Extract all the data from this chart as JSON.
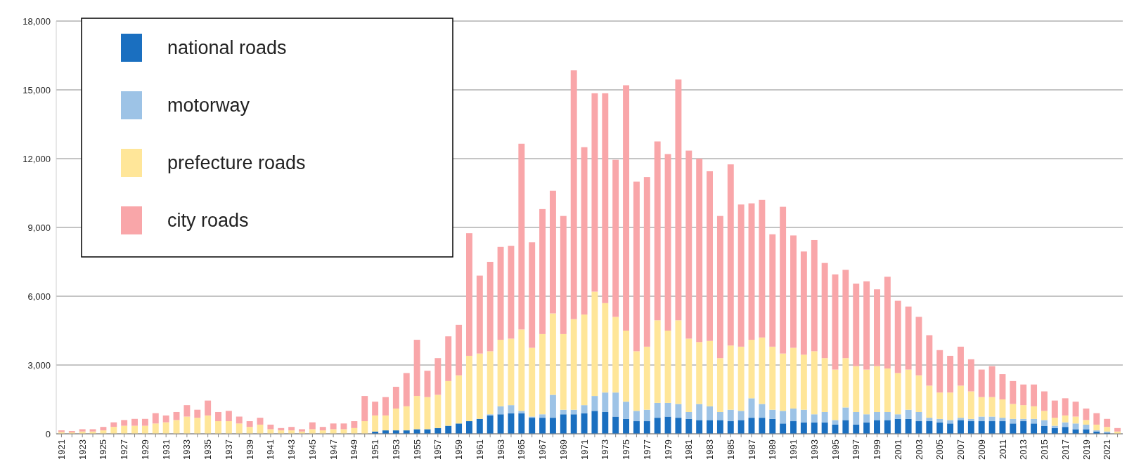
{
  "chart_data": {
    "type": "bar",
    "stacked": true,
    "categories": [
      "1921",
      null,
      "1923",
      null,
      "1925",
      null,
      "1927",
      null,
      "1929",
      null,
      "1931",
      null,
      "1933",
      null,
      "1935",
      null,
      "1937",
      null,
      "1939",
      null,
      "1941",
      null,
      "1943",
      null,
      "1945",
      null,
      "1947",
      null,
      "1949",
      null,
      "1951",
      null,
      "1953",
      null,
      "1955",
      null,
      "1957",
      null,
      "1959",
      null,
      "1961",
      null,
      "1963",
      null,
      "1965",
      null,
      "1967",
      null,
      "1969",
      null,
      "1971",
      null,
      "1973",
      null,
      "1975",
      null,
      "1977",
      null,
      "1979",
      null,
      "1981",
      null,
      "1983",
      null,
      "1985",
      null,
      "1987",
      null,
      "1989",
      null,
      "1991",
      null,
      "1993",
      null,
      "1995",
      null,
      "1997",
      null,
      "1999",
      null,
      "2001",
      null,
      "2003",
      null,
      "2005",
      null,
      "2007",
      null,
      "2009",
      null,
      "2011",
      null,
      "2013",
      null,
      "2015",
      null,
      "2017",
      null,
      "2019",
      null,
      "2021",
      null
    ],
    "series": [
      {
        "name": "national roads",
        "color": "#1a6fc0",
        "values": [
          0,
          0,
          0,
          0,
          0,
          0,
          0,
          0,
          0,
          0,
          0,
          0,
          0,
          0,
          0,
          0,
          0,
          0,
          0,
          0,
          0,
          0,
          0,
          0,
          0,
          0,
          0,
          0,
          0,
          0,
          100,
          150,
          150,
          150,
          200,
          200,
          250,
          350,
          450,
          550,
          650,
          800,
          850,
          900,
          900,
          700,
          700,
          700,
          850,
          850,
          900,
          1000,
          950,
          750,
          650,
          550,
          550,
          700,
          750,
          700,
          650,
          600,
          600,
          600,
          550,
          600,
          700,
          700,
          650,
          450,
          550,
          500,
          500,
          500,
          400,
          600,
          400,
          500,
          600,
          600,
          650,
          650,
          550,
          550,
          500,
          450,
          600,
          550,
          550,
          550,
          550,
          450,
          550,
          450,
          350,
          250,
          300,
          200,
          200,
          100,
          50,
          0
        ]
      },
      {
        "name": "motorway",
        "color": "#9dc3e6",
        "values": [
          0,
          0,
          0,
          0,
          0,
          0,
          0,
          0,
          0,
          0,
          0,
          0,
          0,
          0,
          0,
          0,
          0,
          0,
          0,
          0,
          0,
          0,
          0,
          0,
          0,
          0,
          0,
          0,
          0,
          0,
          0,
          0,
          0,
          0,
          0,
          0,
          0,
          0,
          0,
          0,
          0,
          50,
          350,
          350,
          100,
          50,
          150,
          1000,
          200,
          200,
          350,
          650,
          850,
          1050,
          750,
          450,
          500,
          650,
          600,
          600,
          300,
          700,
          600,
          350,
          500,
          400,
          850,
          600,
          400,
          550,
          550,
          550,
          350,
          450,
          200,
          550,
          550,
          350,
          350,
          350,
          200,
          400,
          400,
          150,
          150,
          150,
          100,
          100,
          200,
          200,
          150,
          200,
          100,
          200,
          250,
          100,
          200,
          250,
          200,
          50,
          50,
          0
        ]
      },
      {
        "name": "prefecture roads",
        "color": "#ffe699",
        "values": [
          80,
          60,
          100,
          100,
          150,
          300,
          350,
          350,
          350,
          450,
          500,
          600,
          750,
          700,
          800,
          550,
          550,
          450,
          300,
          400,
          200,
          150,
          150,
          100,
          200,
          150,
          200,
          200,
          250,
          550,
          700,
          650,
          950,
          1050,
          1450,
          1400,
          1450,
          1950,
          2100,
          2850,
          2850,
          2750,
          2900,
          2900,
          3550,
          3000,
          3500,
          3550,
          3300,
          3950,
          3950,
          4550,
          3900,
          3300,
          3100,
          2600,
          2750,
          3600,
          3150,
          3650,
          3200,
          2700,
          2850,
          2350,
          2800,
          2800,
          2550,
          2900,
          2750,
          2500,
          2650,
          2400,
          2750,
          2350,
          2200,
          2150,
          2000,
          1950,
          2000,
          1900,
          1800,
          1750,
          1600,
          1400,
          1150,
          1200,
          1400,
          1200,
          850,
          850,
          800,
          650,
          600,
          550,
          400,
          350,
          300,
          300,
          200,
          250,
          200,
          100
        ]
      },
      {
        "name": "city roads",
        "color": "#f9a6a9",
        "values": [
          70,
          60,
          100,
          100,
          150,
          200,
          250,
          300,
          300,
          450,
          300,
          350,
          500,
          350,
          650,
          400,
          450,
          300,
          250,
          300,
          200,
          100,
          150,
          100,
          300,
          150,
          250,
          250,
          300,
          1100,
          600,
          800,
          950,
          1450,
          2450,
          1150,
          1600,
          1950,
          2200,
          5350,
          3400,
          3900,
          4050,
          4050,
          8100,
          4600,
          5450,
          5350,
          5150,
          10850,
          7300,
          8650,
          9150,
          6850,
          10700,
          7400,
          7400,
          7800,
          7700,
          10500,
          8200,
          8000,
          7400,
          6200,
          7900,
          6200,
          5950,
          6000,
          4900,
          6400,
          4900,
          4500,
          4850,
          4150,
          4150,
          3850,
          3600,
          3850,
          3350,
          4000,
          3150,
          2750,
          2550,
          2200,
          1850,
          1600,
          1700,
          1400,
          1200,
          1350,
          1100,
          1000,
          900,
          950,
          850,
          750,
          750,
          650,
          500,
          500,
          350,
          150
        ]
      }
    ],
    "ylim": [
      0,
      18000
    ],
    "yticks": [
      0,
      {
        "value": 3000,
        "label": "3,000"
      },
      {
        "value": 6000,
        "label": "6,000"
      },
      {
        "value": 9000,
        "label": "9,000"
      },
      {
        "value": 12000,
        "label": "12,000"
      },
      {
        "value": 15000,
        "label": "15,000"
      },
      {
        "value": 18000,
        "label": "18,000"
      }
    ],
    "grid": "y",
    "legend": "top left"
  }
}
